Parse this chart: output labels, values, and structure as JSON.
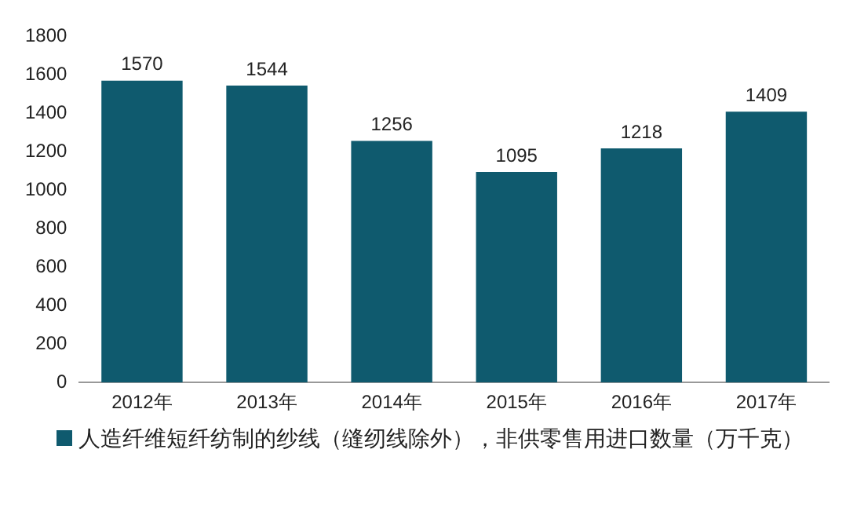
{
  "chart_data": {
    "type": "bar",
    "categories": [
      "2012年",
      "2013年",
      "2014年",
      "2015年",
      "2016年",
      "2017年"
    ],
    "series": [
      {
        "name": "人造纤维短纤纺制的纱线（缝纫线除外），非供零售用进口数量（万千克）",
        "color": "#0f5a6e",
        "values": [
          1570,
          1544,
          1256,
          1095,
          1218,
          1409
        ]
      }
    ],
    "ylim": [
      0,
      1800
    ],
    "yticks": [
      0,
      200,
      400,
      600,
      800,
      1000,
      1200,
      1400,
      1600,
      1800
    ],
    "grid": false,
    "legend": "bottom",
    "data_labels": true
  }
}
